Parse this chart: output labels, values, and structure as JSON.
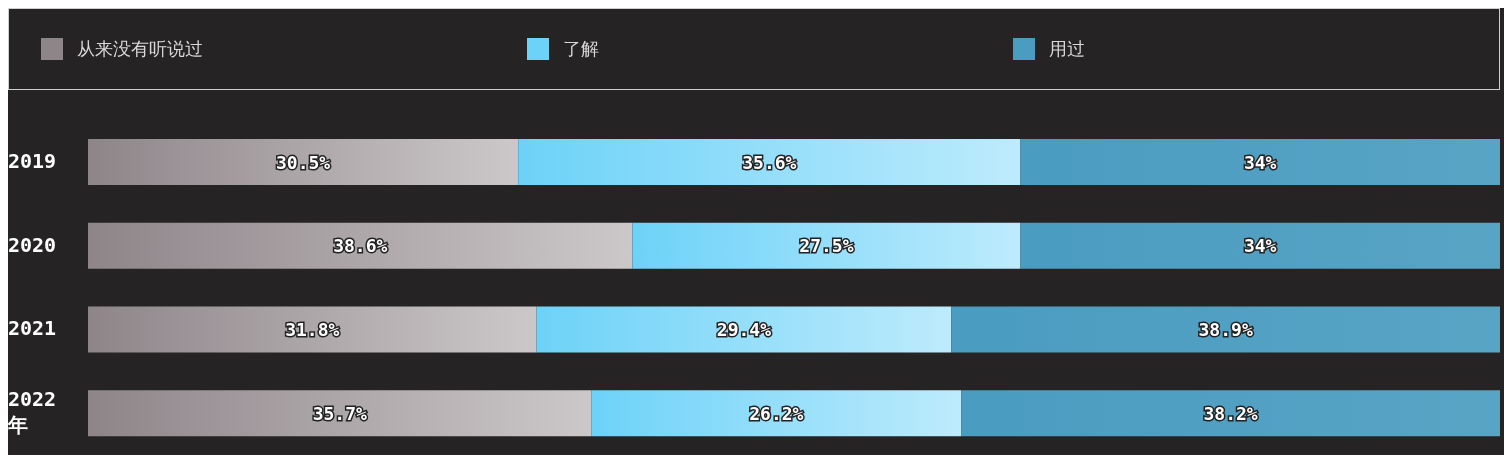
{
  "chart_data": {
    "type": "bar",
    "orientation": "horizontal",
    "stacked": true,
    "legend": "top",
    "categories": [
      "2019",
      "2020",
      "2021",
      "2022年"
    ],
    "series": [
      {
        "name": "从来没有听说过",
        "color": "#8e8589",
        "values": [
          30.5,
          38.6,
          31.8,
          35.7
        ],
        "value_labels": [
          "30.5%",
          "38.6%",
          "31.8%",
          "35.7%"
        ]
      },
      {
        "name": "了解",
        "color": "#6dd2f8",
        "values": [
          35.6,
          27.5,
          29.4,
          26.2
        ],
        "value_labels": [
          "35.6%",
          "27.5%",
          "29.4%",
          "26.2%"
        ]
      },
      {
        "name": "用过",
        "color": "#4a9cc0",
        "values": [
          34,
          34,
          38.9,
          38.2
        ],
        "value_labels": [
          "34%",
          "34%",
          "38.9%",
          "38.2%"
        ]
      }
    ]
  }
}
